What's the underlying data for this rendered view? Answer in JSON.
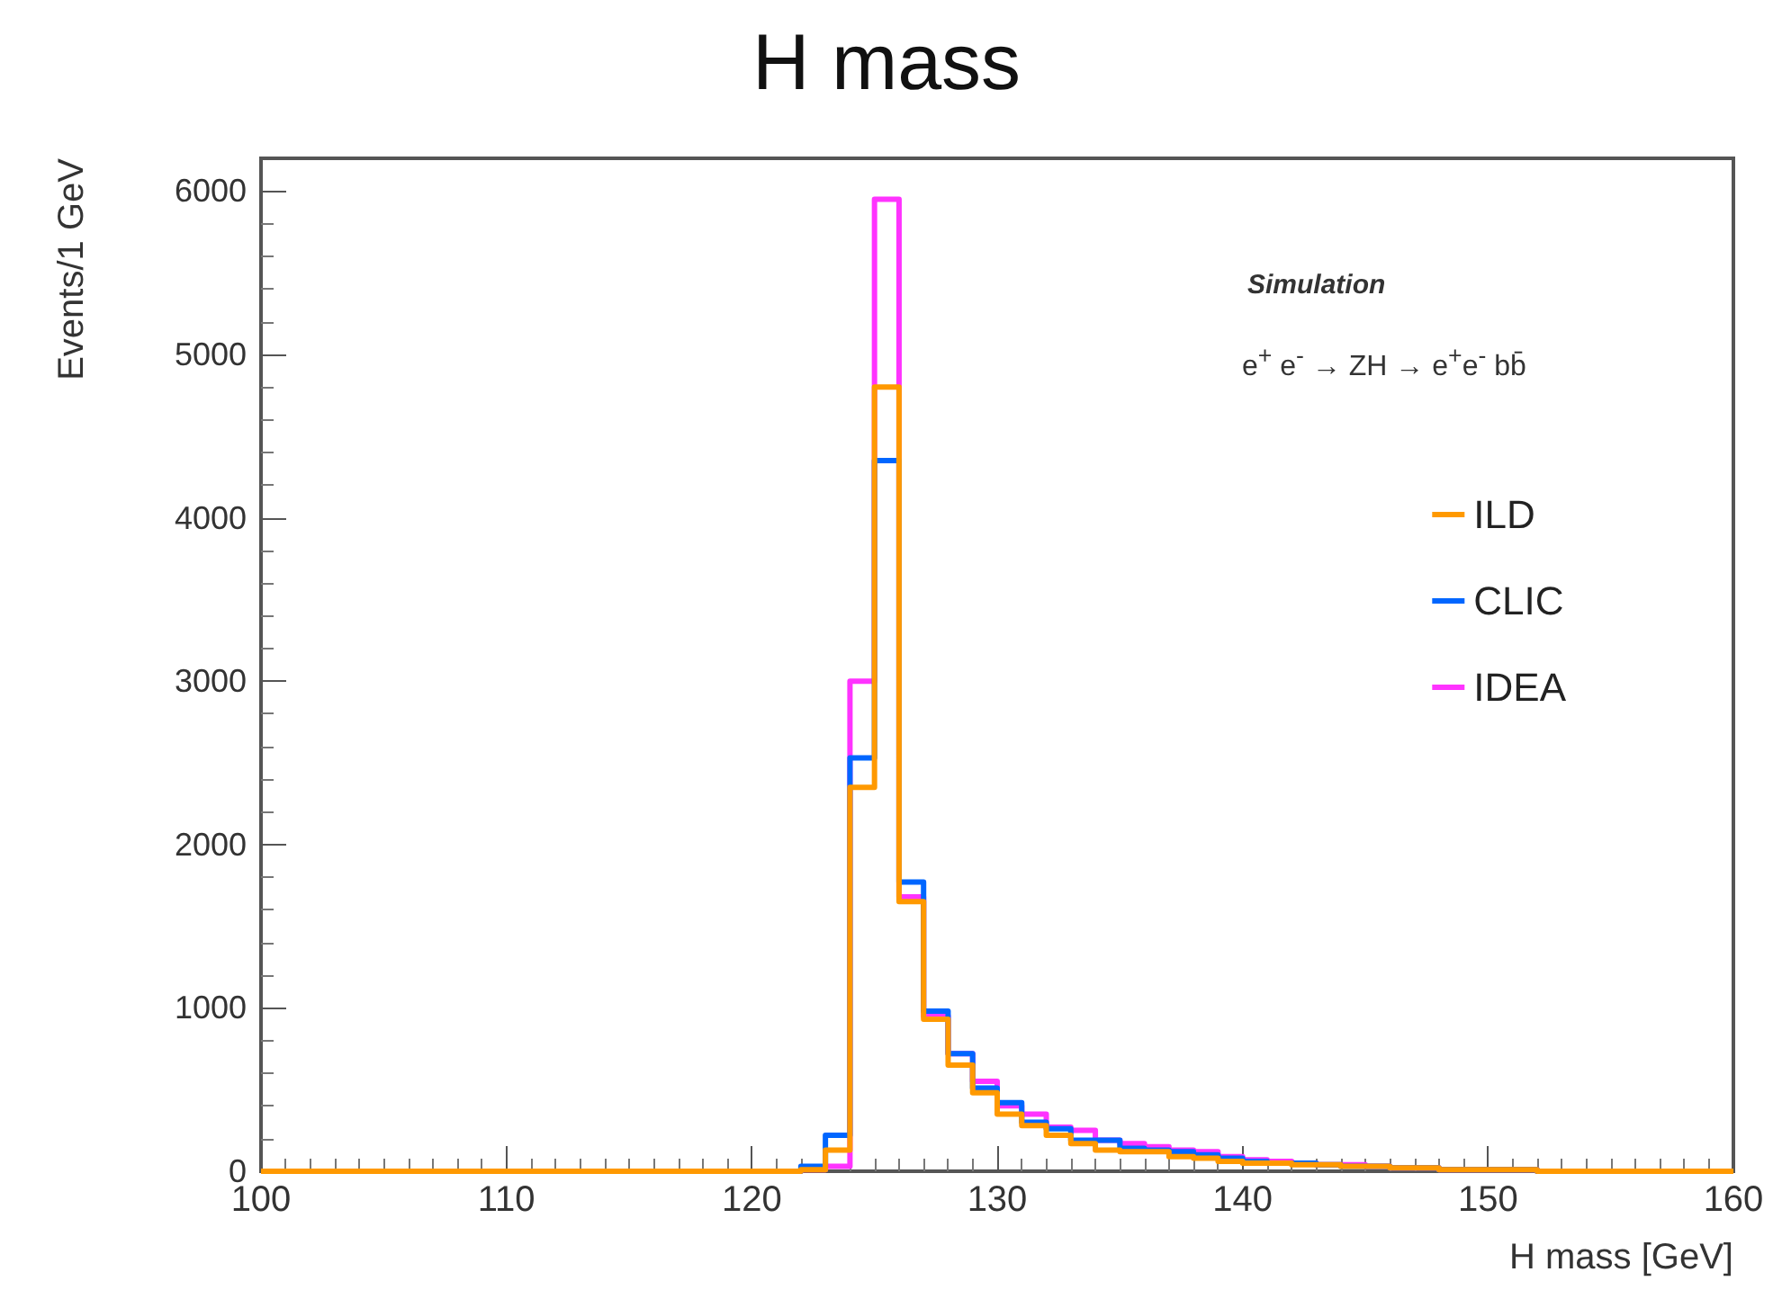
{
  "chart_data": {
    "type": "histogram",
    "title": "H mass",
    "xlabel": "H mass [GeV]",
    "ylabel": "Events/1 GeV",
    "annotations": [
      "Simulation",
      "e$^{+}$ e$^{-}$ → ZH → e$^{+}$e$^{-}$ bb̄"
    ],
    "bins": [
      100,
      101,
      102,
      103,
      104,
      105,
      106,
      107,
      108,
      109,
      110,
      111,
      112,
      113,
      114,
      115,
      116,
      117,
      118,
      119,
      120,
      121,
      122,
      123,
      124,
      125,
      126,
      127,
      128,
      129,
      130,
      131,
      132,
      133,
      134,
      135,
      136,
      137,
      138,
      139,
      140,
      141,
      142,
      143,
      144,
      145,
      146,
      147,
      148,
      149,
      150,
      151,
      152,
      153,
      154,
      155,
      156,
      157,
      158,
      159,
      160
    ],
    "series": [
      {
        "name": "ILD",
        "color": "#ff9900",
        "values": [
          0,
          0,
          0,
          0,
          0,
          0,
          0,
          0,
          0,
          0,
          0,
          0,
          0,
          0,
          0,
          0,
          0,
          0,
          0,
          0,
          0,
          0,
          10,
          130,
          2350,
          4800,
          1650,
          930,
          650,
          480,
          350,
          280,
          220,
          170,
          130,
          120,
          120,
          90,
          80,
          60,
          50,
          50,
          40,
          40,
          30,
          30,
          20,
          20,
          10,
          10,
          10,
          10,
          0,
          0,
          0,
          0,
          0,
          0,
          0,
          0
        ]
      },
      {
        "name": "CLIC",
        "color": "#0066ff",
        "values": [
          0,
          0,
          0,
          0,
          0,
          0,
          0,
          0,
          0,
          0,
          0,
          0,
          0,
          0,
          0,
          0,
          0,
          0,
          0,
          0,
          0,
          0,
          30,
          220,
          2530,
          4350,
          1770,
          980,
          720,
          510,
          420,
          300,
          260,
          190,
          190,
          140,
          130,
          120,
          100,
          80,
          60,
          50,
          50,
          40,
          30,
          30,
          20,
          20,
          10,
          10,
          10,
          10,
          0,
          0,
          0,
          0,
          0,
          0,
          0,
          0
        ]
      },
      {
        "name": "IDEA",
        "color": "#ff33ff",
        "values": [
          0,
          0,
          0,
          0,
          0,
          0,
          0,
          0,
          0,
          0,
          0,
          0,
          0,
          0,
          0,
          0,
          0,
          0,
          0,
          0,
          0,
          0,
          10,
          30,
          3000,
          5950,
          1680,
          950,
          720,
          550,
          400,
          350,
          270,
          250,
          190,
          170,
          150,
          130,
          120,
          90,
          70,
          60,
          50,
          40,
          40,
          30,
          20,
          20,
          10,
          10,
          10,
          10,
          0,
          0,
          0,
          0,
          0,
          0,
          0,
          0
        ]
      }
    ],
    "xlim": [
      100,
      160
    ],
    "xticks": [
      100,
      110,
      120,
      130,
      140,
      150,
      160
    ],
    "ylim": [
      0,
      6200
    ],
    "yticks": [
      0,
      1000,
      2000,
      3000,
      4000,
      5000,
      6000
    ],
    "legend": "top right",
    "grid": false
  }
}
